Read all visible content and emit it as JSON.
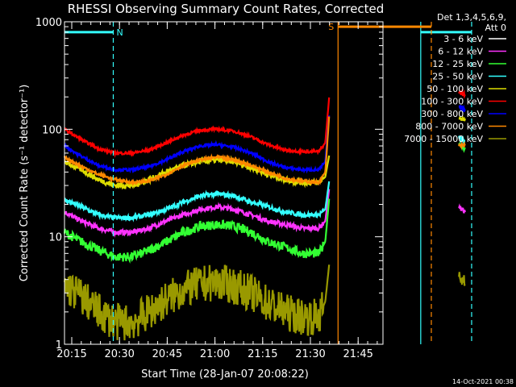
{
  "chart_data": {
    "type": "line",
    "title": "RHESSI Observing Summary Count Rates, Corrected",
    "xlabel": "Start Time (28-Jan-07 20:08:22)",
    "ylabel": "Corrected Count Rate (s⁻¹ detector⁻¹)",
    "y_scale": "log",
    "ylim": [
      1,
      1000
    ],
    "y_ticks": [
      1,
      10,
      100,
      1000
    ],
    "y_tick_labels": [
      "1",
      "10",
      "100",
      "1000"
    ],
    "xlim_minutes": [
      0,
      37.5
    ],
    "x_ticks_minutes": [
      6.63,
      21.63,
      36.63,
      51.63,
      66.63,
      81.63,
      96.63
    ],
    "x_tick_labels": [
      "20:15",
      "20:30",
      "20:45",
      "21:00",
      "21:15",
      "21:30",
      "21:45"
    ],
    "legend": {
      "header": [
        "Det 1,3,4,5,6,9,",
        "Att 0"
      ],
      "placement": "right-outside",
      "entries": [
        {
          "label": "3 - 6 keV",
          "color": "#ffffff"
        },
        {
          "label": "6 - 12 keV",
          "color": "#ff33ff"
        },
        {
          "label": "12 - 25 keV",
          "color": "#33ff33"
        },
        {
          "label": "25 - 50 keV",
          "color": "#33ffff"
        },
        {
          "label": "50 - 100 keV",
          "color": "#dddd00"
        },
        {
          "label": "100 - 300 keV",
          "color": "#ff0000"
        },
        {
          "label": "300 - 800 keV",
          "color": "#0000ff"
        },
        {
          "label": "800 - 7000 keV",
          "color": "#ff8800"
        },
        {
          "label": "7000 - 15000 keV",
          "color": "#999900"
        }
      ]
    },
    "series": [
      {
        "name": "3 - 6 keV",
        "color": "#000000",
        "x": [
          0,
          4,
          8,
          12,
          16,
          20,
          24,
          28,
          32,
          36,
          40,
          44,
          48,
          52,
          56,
          60,
          61.5,
          62.5
        ],
        "y": [
          7,
          5,
          3.5,
          2.5,
          3,
          4,
          6,
          8,
          9.5,
          10,
          9,
          7,
          5,
          4,
          3.5,
          3,
          5,
          15
        ],
        "noise": 0.32,
        "late_x": [
          93,
          94.5
        ],
        "late_y": [
          10,
          9
        ]
      },
      {
        "name": "6 - 12 keV",
        "color": "#ff33ff",
        "x": [
          0,
          4,
          8,
          12,
          16,
          20,
          24,
          28,
          32,
          36,
          40,
          44,
          48,
          52,
          56,
          60,
          61.5,
          62.5
        ],
        "y": [
          17,
          14,
          12,
          11,
          11,
          12,
          14,
          16,
          18,
          19,
          18,
          16,
          14,
          13,
          12,
          12,
          14,
          30
        ],
        "noise": 0.05,
        "late_x": [
          93,
          94.5
        ],
        "late_y": [
          19,
          17
        ]
      },
      {
        "name": "12 - 25 keV",
        "color": "#33ff33",
        "x": [
          0,
          4,
          8,
          12,
          16,
          20,
          24,
          28,
          32,
          36,
          40,
          44,
          48,
          52,
          56,
          60,
          61.5,
          62.5
        ],
        "y": [
          11,
          9,
          7.5,
          6.5,
          6.5,
          7.5,
          9,
          11,
          12.5,
          13,
          12.5,
          11,
          9,
          8,
          7,
          7,
          9,
          25
        ],
        "noise": 0.1,
        "late_x": [
          93,
          94.5
        ],
        "late_y": [
          75,
          65
        ]
      },
      {
        "name": "25 - 50 keV",
        "color": "#33ffff",
        "x": [
          0,
          4,
          8,
          12,
          16,
          20,
          24,
          28,
          32,
          36,
          40,
          44,
          48,
          52,
          56,
          60,
          61.5,
          62.5
        ],
        "y": [
          22,
          19,
          16,
          15,
          15,
          16,
          18,
          21,
          24,
          25,
          24,
          21,
          19,
          17,
          16,
          16,
          18,
          35
        ],
        "noise": 0.05,
        "late_x": [
          93,
          94.5
        ],
        "late_y": [
          85,
          75
        ]
      },
      {
        "name": "50 - 100 keV",
        "color": "#dddd00",
        "x": [
          0,
          4,
          8,
          12,
          16,
          20,
          24,
          28,
          32,
          36,
          40,
          44,
          48,
          52,
          56,
          60,
          61.5,
          62.5
        ],
        "y": [
          50,
          42,
          34,
          30,
          30,
          34,
          40,
          46,
          50,
          52,
          50,
          44,
          38,
          34,
          32,
          32,
          36,
          60
        ],
        "noise": 0.06,
        "late_x": [
          93,
          94.5
        ],
        "late_y": [
          130,
          120
        ]
      },
      {
        "name": "100 - 300 keV",
        "color": "#ff0000",
        "x": [
          0,
          4,
          8,
          12,
          16,
          20,
          24,
          28,
          32,
          36,
          40,
          44,
          48,
          52,
          56,
          60,
          61.5,
          62.5
        ],
        "y": [
          100,
          80,
          66,
          60,
          60,
          64,
          75,
          88,
          98,
          100,
          96,
          85,
          72,
          64,
          62,
          62,
          75,
          220
        ],
        "noise": 0.03,
        "late_x": [
          93,
          94.5
        ],
        "late_y": [
          220,
          210
        ]
      },
      {
        "name": "300 - 800 keV",
        "color": "#0000ff",
        "x": [
          0,
          4,
          8,
          12,
          16,
          20,
          24,
          28,
          32,
          36,
          40,
          44,
          48,
          52,
          56,
          60,
          61.5,
          62.5
        ],
        "y": [
          70,
          56,
          46,
          42,
          42,
          45,
          52,
          62,
          70,
          72,
          68,
          60,
          50,
          44,
          42,
          42,
          50,
          150
        ],
        "noise": 0.03,
        "late_x": [
          93,
          94.5
        ],
        "late_y": [
          160,
          150
        ]
      },
      {
        "name": "800 - 7000 keV",
        "color": "#ff8800",
        "x": [
          0,
          4,
          8,
          12,
          16,
          20,
          24,
          28,
          32,
          36,
          40,
          44,
          48,
          52,
          56,
          60,
          61.5,
          62.5
        ],
        "y": [
          55,
          45,
          38,
          34,
          32,
          33,
          38,
          46,
          52,
          55,
          52,
          46,
          40,
          35,
          33,
          32,
          40,
          150
        ],
        "noise": 0.03,
        "late_x": [
          93,
          94.5
        ],
        "late_y": [
          70,
          70
        ]
      },
      {
        "name": "7000 - 15000 keV",
        "color": "#999900",
        "x": [
          0,
          4,
          8,
          12,
          16,
          20,
          24,
          28,
          32,
          36,
          40,
          44,
          48,
          52,
          56,
          60,
          61.5,
          62.5
        ],
        "y": [
          3.5,
          2.8,
          2,
          1.6,
          1.6,
          2,
          2.6,
          3.2,
          3.6,
          3.8,
          3.5,
          3,
          2.4,
          2,
          1.8,
          1.8,
          2.5,
          6
        ],
        "noise": 0.4,
        "late_x": [
          93,
          94.5
        ],
        "late_y": [
          4,
          4
        ]
      }
    ],
    "intervals": [
      {
        "label": "N",
        "color": "#33ffff",
        "start_minutes": 0,
        "end_minutes": 11.5,
        "end_style": "dashed",
        "level": 800
      },
      {
        "label": "",
        "color": "#33ffff",
        "start_minutes": 84,
        "end_minutes": 96,
        "end_style": "dashed",
        "level": 800
      },
      {
        "label": "S",
        "color": "#ff8800",
        "start_minutes": 64.5,
        "end_minutes": 86.5,
        "end_style": "dashed",
        "level": 900
      }
    ],
    "grid": false,
    "timestamp": "14-Oct-2021 00:38"
  }
}
